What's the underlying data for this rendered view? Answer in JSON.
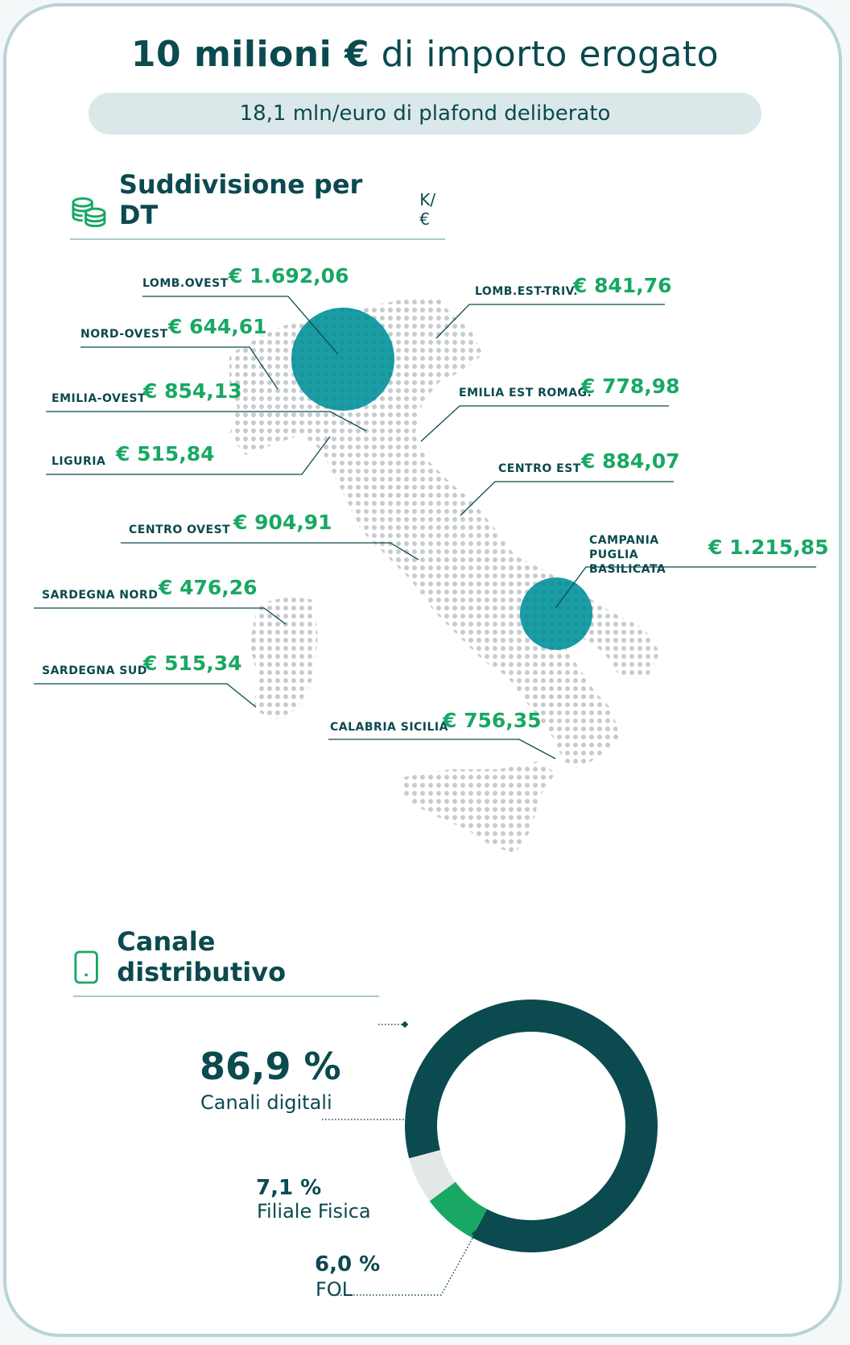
{
  "header": {
    "title_bold": "10 milioni €",
    "title_rest": " di importo erogato",
    "subtitle": "18,1 mln/euro di plafond deliberato"
  },
  "section_dt": {
    "title": "Suddivisione per DT",
    "unit": "K/€",
    "icon": "coins-stack-icon",
    "regions": [
      {
        "label": "LOMB.OVEST",
        "value": "€ 1.692,06"
      },
      {
        "label": "LOMB.EST-TRIV.",
        "value": "€ 841,76"
      },
      {
        "label": "NORD-OVEST",
        "value": "€ 644,61"
      },
      {
        "label": "EMILIA-OVEST",
        "value": "€ 854,13"
      },
      {
        "label": "EMILIA EST ROMAG.",
        "value": "€ 778,98"
      },
      {
        "label": "LIGURIA",
        "value": "€ 515,84"
      },
      {
        "label": "CENTRO EST",
        "value": "€ 884,07"
      },
      {
        "label": "CENTRO OVEST",
        "value": "€ 904,91"
      },
      {
        "label": "CAMPANIA PUGLIA BASILICATA",
        "value": "€ 1.215,85"
      },
      {
        "label": "SARDEGNA NORD",
        "value": "€ 476,26"
      },
      {
        "label": "SARDEGNA SUD",
        "value": "€ 515,34"
      },
      {
        "label": "CALABRIA SICILIA",
        "value": "€ 756,35"
      }
    ]
  },
  "section_channel": {
    "title": "Canale distributivo",
    "icon": "smartphone-icon",
    "items": [
      {
        "pct": "86,9 %",
        "label": "Canali digitali"
      },
      {
        "pct": "7,1 %",
        "label": "Filiale Fisica"
      },
      {
        "pct": "6,0 %",
        "label": "FOL"
      }
    ]
  },
  "colors": {
    "dark_teal": "#0b4a4f",
    "teal": "#1a9da5",
    "green": "#18a864",
    "light_grey": "#e3e7e8",
    "dot_grey": "#c6cccd"
  },
  "chart_data": {
    "type": "pie",
    "categories": [
      "Canali digitali",
      "Filiale Fisica",
      "FOL"
    ],
    "values": [
      86.9,
      7.1,
      6.0
    ]
  }
}
